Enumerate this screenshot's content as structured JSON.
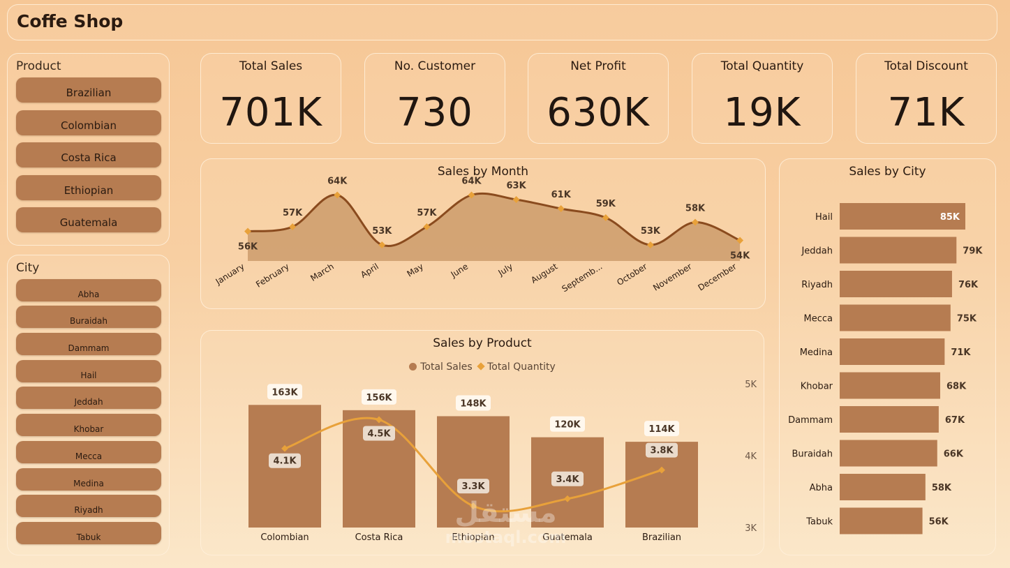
{
  "title": "Coffe Shop",
  "product_slicer": {
    "title": "Product",
    "items": [
      "Brazilian",
      "Colombian",
      "Costa Rica",
      "Ethiopian",
      "Guatemala"
    ]
  },
  "city_slicer": {
    "title": "City",
    "items": [
      "Abha",
      "Buraidah",
      "Dammam",
      "Hail",
      "Jeddah",
      "Khobar",
      "Mecca",
      "Medina",
      "Riyadh",
      "Tabuk"
    ]
  },
  "kpis": [
    {
      "label": "Total Sales",
      "value": "701K"
    },
    {
      "label": "No. Customer",
      "value": "730"
    },
    {
      "label": "Net Profit",
      "value": "630K"
    },
    {
      "label": "Total Quantity",
      "value": "19K"
    },
    {
      "label": "Total Discount",
      "value": "71K"
    }
  ],
  "colors": {
    "bar": "#b67c51",
    "line_month": "#8a4b1e",
    "area_month": "#c99868",
    "quantity_line": "#e8a13a"
  },
  "watermark": {
    "arabic": "مستقل",
    "latin": "mostaql.com"
  },
  "chart_data": [
    {
      "type": "area",
      "title": "Sales by Month",
      "x": [
        "January",
        "February",
        "March",
        "April",
        "May",
        "June",
        "July",
        "August",
        "Septemb...",
        "October",
        "November",
        "December"
      ],
      "values": [
        56,
        57,
        64,
        53,
        57,
        64,
        63,
        61,
        59,
        53,
        58,
        54
      ],
      "labels": [
        "56K",
        "57K",
        "64K",
        "53K",
        "57K",
        "64K",
        "63K",
        "61K",
        "59K",
        "53K",
        "58K",
        "54K"
      ],
      "grid": false
    },
    {
      "type": "bar",
      "title": "Sales by City",
      "categories": [
        "Hail",
        "Jeddah",
        "Riyadh",
        "Mecca",
        "Medina",
        "Khobar",
        "Dammam",
        "Buraidah",
        "Abha",
        "Tabuk"
      ],
      "values": [
        85,
        79,
        76,
        75,
        71,
        68,
        67,
        66,
        58,
        56
      ],
      "labels": [
        "85K",
        "79K",
        "76K",
        "75K",
        "71K",
        "68K",
        "67K",
        "66K",
        "58K",
        "56K"
      ],
      "orientation": "horizontal"
    },
    {
      "type": "bar",
      "title": "Sales by Product",
      "categories": [
        "Colombian",
        "Costa Rica",
        "Ethiopian",
        "Guatemala",
        "Brazilian"
      ],
      "series": [
        {
          "name": "Total Sales",
          "type": "bar",
          "values": [
            163,
            156,
            148,
            120,
            114
          ],
          "labels": [
            "163K",
            "156K",
            "148K",
            "120K",
            "114K"
          ]
        },
        {
          "name": "Total Quantity",
          "type": "line",
          "axis": "secondary",
          "values": [
            4.1,
            4.5,
            3.3,
            3.4,
            3.8
          ],
          "labels": [
            "4.1K",
            "4.5K",
            "3.3K",
            "3.4K",
            "3.8K"
          ]
        }
      ],
      "legend": "top-center",
      "secondary_axis": {
        "ticks": [
          "3K",
          "4K",
          "5K"
        ],
        "range": [
          3,
          5
        ]
      }
    }
  ]
}
